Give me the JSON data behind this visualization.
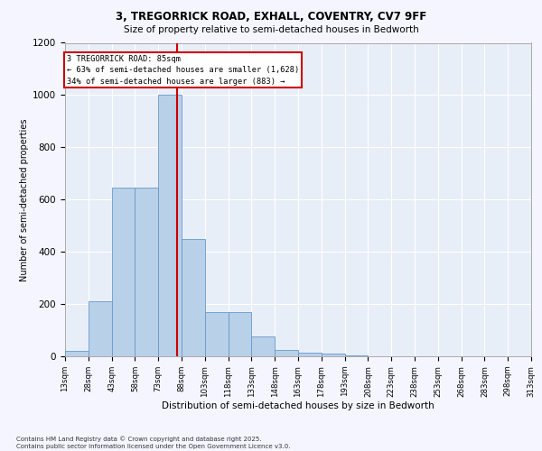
{
  "title_line1": "3, TREGORRICK ROAD, EXHALL, COVENTRY, CV7 9FF",
  "title_line2": "Size of property relative to semi-detached houses in Bedworth",
  "xlabel": "Distribution of semi-detached houses by size in Bedworth",
  "ylabel": "Number of semi-detached properties",
  "bar_color": "#b8d0e8",
  "bar_edge_color": "#6699cc",
  "background_color": "#e8eef8",
  "grid_color": "#ffffff",
  "annotation_box_color": "#cc0000",
  "property_line_color": "#cc0000",
  "property_value": 85,
  "annotation_text": "3 TREGORRICK ROAD: 85sqm\n← 63% of semi-detached houses are smaller (1,628)\n34% of semi-detached houses are larger (883) →",
  "footnote": "Contains HM Land Registry data © Crown copyright and database right 2025.\nContains public sector information licensed under the Open Government Licence v3.0.",
  "bin_edges": [
    13,
    28,
    43,
    58,
    73,
    88,
    103,
    118,
    133,
    148,
    163,
    178,
    193,
    208,
    223,
    238,
    253,
    268,
    283,
    298,
    313
  ],
  "bin_labels": [
    "13sqm",
    "28sqm",
    "43sqm",
    "58sqm",
    "73sqm",
    "88sqm",
    "103sqm",
    "118sqm",
    "133sqm",
    "148sqm",
    "163sqm",
    "178sqm",
    "193sqm",
    "208sqm",
    "223sqm",
    "238sqm",
    "253sqm",
    "268sqm",
    "283sqm",
    "298sqm",
    "313sqm"
  ],
  "counts": [
    20,
    210,
    645,
    645,
    1000,
    450,
    170,
    170,
    75,
    25,
    15,
    10,
    2,
    0,
    0,
    0,
    0,
    0,
    0,
    0
  ],
  "ylim": [
    0,
    1200
  ],
  "yticks": [
    0,
    200,
    400,
    600,
    800,
    1000,
    1200
  ],
  "fig_width": 6.0,
  "fig_height": 5.0,
  "dpi": 100
}
